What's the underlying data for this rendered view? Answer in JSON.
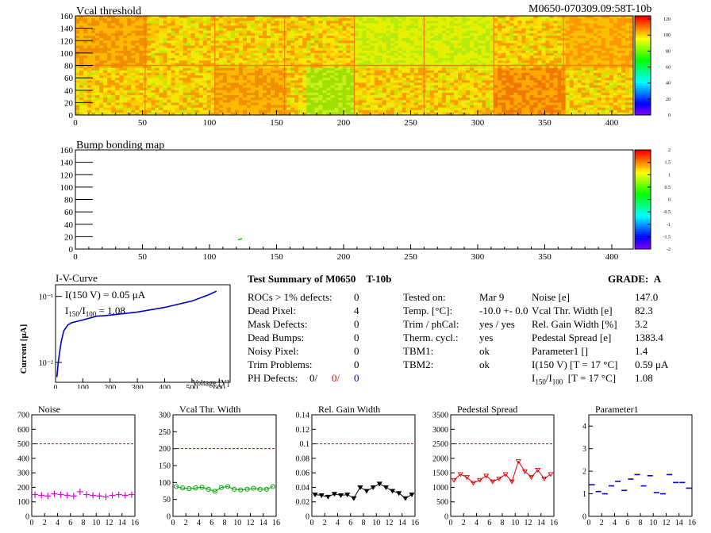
{
  "header": {
    "id": "M0650-070309.09:58T-10b"
  },
  "vcal_map": {
    "title": "Vcal threshold",
    "x_ticks": [
      "0",
      "50",
      "100",
      "150",
      "200",
      "250",
      "300",
      "350",
      "400"
    ],
    "y_ticks": [
      "0",
      "20",
      "40",
      "60",
      "80",
      "100",
      "120",
      "140",
      "160"
    ],
    "scale_ticks": [
      "0",
      "20",
      "40",
      "60",
      "80",
      "100",
      "120"
    ],
    "colors": {
      "low": "#ffd200",
      "mid": "#f0e000",
      "high": "#f07800",
      "green_patch": "#9ee000"
    }
  },
  "bump_map": {
    "title": "Bump bonding map",
    "x_ticks": [
      "0",
      "50",
      "100",
      "150",
      "200",
      "250",
      "300",
      "350",
      "400"
    ],
    "y_ticks": [
      "0",
      "20",
      "40",
      "60",
      "80",
      "100",
      "120",
      "140",
      "160"
    ],
    "scale_ticks": [
      "-2",
      "-1.5",
      "-1",
      "-0.5",
      "0",
      "0.5",
      "1",
      "1.5",
      "2"
    ]
  },
  "iv_curve": {
    "title": "I-V-Curve",
    "ylabel": "Current [μA]",
    "xlabel": "Voltage [V]",
    "x_ticks": [
      "0",
      "100",
      "200",
      "300",
      "400",
      "500",
      "600"
    ],
    "y_ticks": [
      "10⁻¹",
      "10⁻²"
    ],
    "annot1": "I(150 V) = 0.05 μA",
    "annot2_pre": "I",
    "annot2_sub1": "150",
    "annot2_mid": "/I",
    "annot2_sub2": "100",
    "annot2_post": " = 1.08",
    "curve_color": "#0000cc"
  },
  "summary": {
    "title": "Test Summary of M0650",
    "tag": "T-10b",
    "grade_label": "GRADE:",
    "grade_value": "A",
    "left": [
      {
        "label": "ROCs > 1% defects:",
        "value": "0"
      },
      {
        "label": "Dead Pixel:",
        "value": "4"
      },
      {
        "label": "Mask Defects:",
        "value": "0"
      },
      {
        "label": "Dead Bumps:",
        "value": "0"
      },
      {
        "label": "Noisy Pixel:",
        "value": "0"
      },
      {
        "label": "Trim Problems:",
        "value": "0"
      }
    ],
    "ph": {
      "label": "PH Defects:",
      "v1": "0/",
      "v2": "0/",
      "v3": "0"
    },
    "middle": [
      {
        "label": "Tested on:",
        "value": "Mar 9"
      },
      {
        "label": "Temp. [°C]:",
        "value": "-10.0 +- 0.0"
      },
      {
        "label": "Trim / phCal:",
        "value": "yes / yes"
      },
      {
        "label": "Therm. cycl.:",
        "value": "yes"
      },
      {
        "label": "TBM1:",
        "value": "ok"
      },
      {
        "label": "TBM2:",
        "value": "ok"
      }
    ],
    "right": [
      {
        "label": "Noise [e]",
        "value": "147.0"
      },
      {
        "label": "Vcal Thr. Width [e]",
        "value": "82.3"
      },
      {
        "label": "Rel. Gain Width [%]",
        "value": "3.2"
      },
      {
        "label": "Pedestal Spread [e]",
        "value": "1383.4"
      },
      {
        "label": "Parameter1 []",
        "value": "1.4"
      },
      {
        "label": "I(150 V)  [T = 17 °C]",
        "value": "0.59 μA"
      }
    ],
    "ratio": {
      "pre": "I",
      "sub1": "150",
      "mid": "/I",
      "sub2": "100",
      "post": "  [T = 17 °C]",
      "value": "1.08"
    }
  },
  "chart_data": [
    {
      "type": "scatter",
      "title": "Noise",
      "color": "#dd00dd",
      "marker": "plus",
      "x": [
        0,
        1,
        2,
        3,
        4,
        5,
        6,
        7,
        8,
        9,
        10,
        11,
        12,
        13,
        14,
        15
      ],
      "values": [
        150,
        145,
        140,
        155,
        150,
        145,
        140,
        170,
        150,
        145,
        140,
        135,
        145,
        150,
        145,
        150
      ],
      "ylim": [
        0,
        700
      ],
      "threshold": 500,
      "y_ticks": [
        "0",
        "100",
        "200",
        "300",
        "400",
        "500",
        "600",
        "700"
      ]
    },
    {
      "type": "line",
      "title": "Vcal Thr. Width",
      "color": "#00aa00",
      "marker": "circle",
      "x": [
        0,
        1,
        2,
        3,
        4,
        5,
        6,
        7,
        8,
        9,
        10,
        11,
        12,
        13,
        14,
        15
      ],
      "values": [
        88,
        84,
        82,
        84,
        86,
        80,
        74,
        85,
        88,
        80,
        78,
        80,
        83,
        80,
        80,
        88
      ],
      "ylim": [
        0,
        300
      ],
      "threshold": 200,
      "y_ticks": [
        "0",
        "50",
        "100",
        "150",
        "200",
        "250",
        "300"
      ]
    },
    {
      "type": "line",
      "title": "Rel. Gain Width",
      "color": "#000000",
      "marker": "triangle",
      "x": [
        0,
        1,
        2,
        3,
        4,
        5,
        6,
        7,
        8,
        9,
        10,
        11,
        12,
        13,
        14,
        15
      ],
      "values": [
        0.03,
        0.029,
        0.027,
        0.031,
        0.029,
        0.03,
        0.025,
        0.04,
        0.035,
        0.04,
        0.045,
        0.04,
        0.035,
        0.032,
        0.025,
        0.03
      ],
      "ylim": [
        0,
        0.14
      ],
      "threshold": 0.1,
      "y_ticks": [
        "0",
        "0.02",
        "0.04",
        "0.06",
        "0.08",
        "0.1",
        "0.12",
        "0.14"
      ]
    },
    {
      "type": "line",
      "title": "Pedestal Spread",
      "color": "#dd0000",
      "marker": "triangle",
      "x": [
        0,
        1,
        2,
        3,
        4,
        5,
        6,
        7,
        8,
        9,
        10,
        11,
        12,
        13,
        14,
        15
      ],
      "values": [
        1250,
        1450,
        1350,
        1150,
        1250,
        1400,
        1200,
        1300,
        1450,
        1200,
        1900,
        1550,
        1350,
        1600,
        1300,
        1450
      ],
      "ylim": [
        0,
        3500
      ],
      "threshold": 2500,
      "y_ticks": [
        "0",
        "500",
        "1000",
        "1500",
        "2000",
        "2500",
        "3000",
        "3500"
      ]
    },
    {
      "type": "scatter",
      "title": "Parameter1",
      "color": "#0000dd",
      "marker": "hbar",
      "x": [
        0,
        1,
        2,
        3,
        4,
        5,
        6,
        7,
        8,
        9,
        10,
        11,
        12,
        13,
        14,
        15
      ],
      "values": [
        1.4,
        1.1,
        1.0,
        1.35,
        1.55,
        1.15,
        1.65,
        1.85,
        1.35,
        1.8,
        1.05,
        1.0,
        1.85,
        1.5,
        1.5,
        1.25
      ],
      "ylim": [
        0,
        4.5
      ],
      "y_ticks": [
        "0",
        "1",
        "2",
        "3",
        "4"
      ]
    }
  ],
  "small_x_ticks": [
    "0",
    "2",
    "4",
    "6",
    "8",
    "10",
    "12",
    "14",
    "16"
  ]
}
